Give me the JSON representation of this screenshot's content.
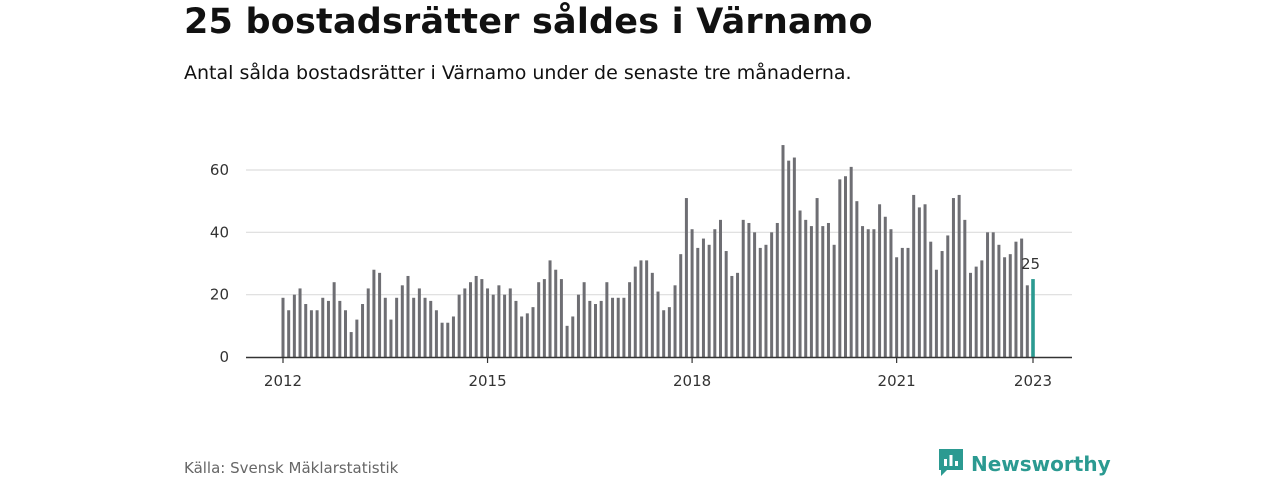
{
  "title": "25 bostadsrätter såldes i Värnamo",
  "subtitle": "Antal sålda bostadsrätter i Värnamo under de senaste tre månaderna.",
  "source": "Källa: Svensk Mäklarstatistik",
  "brand": {
    "name": "Newsworthy",
    "icon": "newsworthy-logo-icon",
    "color": "#2b9a91"
  },
  "colors": {
    "bar": "#6e6e73",
    "highlight": "#2b9a91",
    "grid": "#dddddd",
    "axis": "#333333"
  },
  "chart_data": {
    "type": "bar",
    "title": "25 bostadsrätter såldes i Värnamo",
    "subtitle": "Antal sålda bostadsrätter i Värnamo under de senaste tre månaderna.",
    "xlabel": "",
    "ylabel": "",
    "x_start": "2012-01",
    "x_end": "2023-01",
    "xticks": [
      "2012",
      "2015",
      "2018",
      "2021",
      "2023"
    ],
    "yticks": [
      0,
      20,
      40,
      60
    ],
    "ylim": [
      0,
      70
    ],
    "grid": true,
    "legend": "none",
    "highlight": {
      "x": "2023-01",
      "value": 25,
      "label": "25"
    },
    "values": [
      19,
      15,
      20,
      22,
      17,
      15,
      15,
      19,
      18,
      24,
      18,
      15,
      8,
      12,
      17,
      22,
      28,
      27,
      19,
      12,
      19,
      23,
      26,
      19,
      22,
      19,
      18,
      15,
      11,
      11,
      13,
      20,
      22,
      24,
      26,
      25,
      22,
      20,
      23,
      20,
      22,
      18,
      13,
      14,
      16,
      24,
      25,
      31,
      28,
      25,
      10,
      13,
      20,
      24,
      18,
      17,
      18,
      24,
      19,
      19,
      19,
      24,
      29,
      31,
      31,
      27,
      21,
      15,
      16,
      23,
      33,
      51,
      41,
      35,
      38,
      36,
      41,
      44,
      34,
      26,
      27,
      44,
      43,
      40,
      35,
      36,
      40,
      43,
      68,
      63,
      64,
      47,
      44,
      42,
      51,
      42,
      43,
      36,
      57,
      58,
      61,
      50,
      42,
      41,
      41,
      49,
      45,
      41,
      32,
      35,
      35,
      52,
      48,
      49,
      37,
      28,
      34,
      39,
      51,
      52,
      44,
      27,
      29,
      31,
      40,
      40,
      36,
      32,
      33,
      37,
      38,
      23,
      25
    ]
  }
}
